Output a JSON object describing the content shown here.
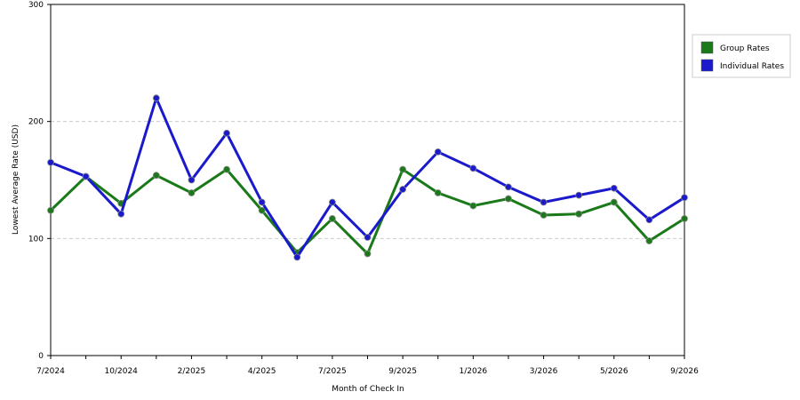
{
  "chart_data": {
    "type": "line",
    "x_label": "Month of Check In",
    "y_label": "Lowest Average Rate (USD)",
    "categories": [
      "7/2024",
      null,
      "10/2024",
      null,
      "2/2025",
      null,
      "4/2025",
      null,
      "7/2025",
      null,
      "9/2025",
      null,
      "1/2026",
      null,
      "3/2026",
      null,
      "5/2026",
      null,
      "9/2026"
    ],
    "series": [
      {
        "name": "Group Rates",
        "color": "#1a7a1a",
        "values": [
          124,
          153,
          130,
          154,
          139,
          159,
          124,
          88,
          117,
          87,
          159,
          139,
          128,
          134,
          120,
          121,
          131,
          98,
          117
        ]
      },
      {
        "name": "Individual Rates",
        "color": "#1a1acc",
        "values": [
          165,
          153,
          121,
          220,
          150,
          190,
          131,
          84,
          131,
          101,
          142,
          174,
          160,
          144,
          131,
          137,
          143,
          116,
          135
        ]
      }
    ],
    "ylim": [
      0,
      300
    ],
    "yticks": [
      0,
      100,
      200,
      300
    ],
    "grid": true,
    "legend": "right"
  }
}
